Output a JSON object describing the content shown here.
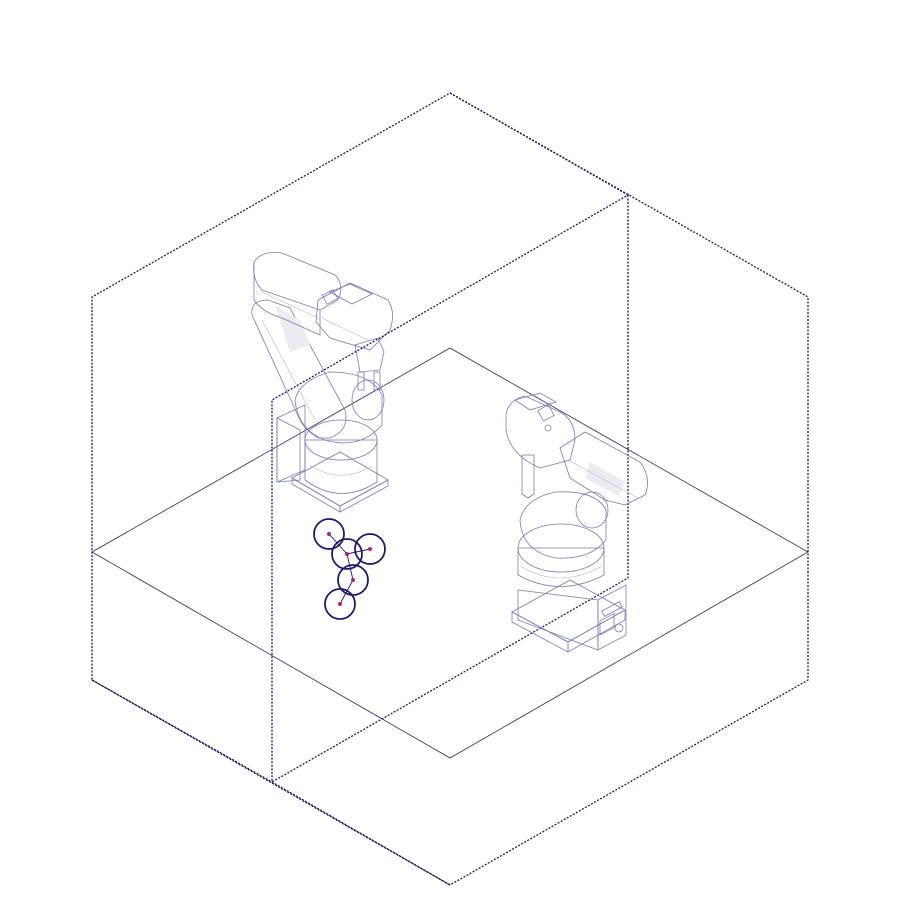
{
  "colors": {
    "frame": "#1a1a66",
    "floor": "#2a2a6a",
    "node_ring": "#1c1a6e",
    "node_dot": "#b0207a",
    "robot_edge": "#7a7ab8",
    "background": "#ffffff"
  },
  "scene": {
    "robots": [
      "robot-arm-left",
      "robot-arm-right"
    ],
    "joint_nodes": 5
  }
}
